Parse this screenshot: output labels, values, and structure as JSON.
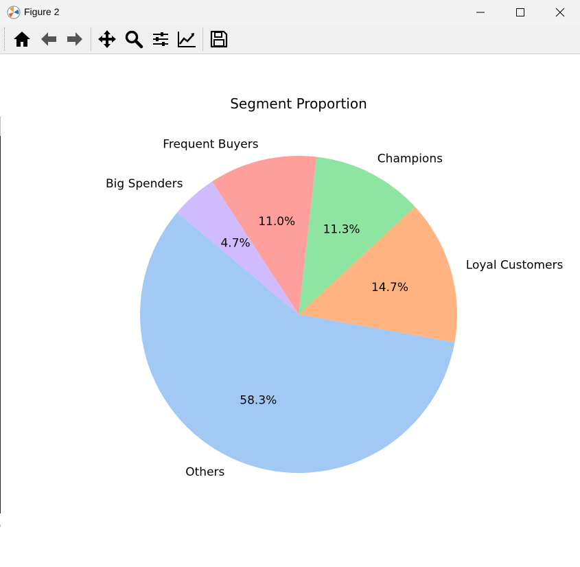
{
  "window": {
    "title": "Figure 2",
    "buttons": [
      "minimize",
      "maximize",
      "close"
    ]
  },
  "toolbar": {
    "tools": [
      {
        "name": "home-icon",
        "tooltip": "Home"
      },
      {
        "name": "back-arrow-icon",
        "tooltip": "Back"
      },
      {
        "name": "forward-arrow-icon",
        "tooltip": "Forward"
      },
      {
        "name": "pan-icon",
        "tooltip": "Pan"
      },
      {
        "name": "zoom-icon",
        "tooltip": "Zoom"
      },
      {
        "name": "subplots-config-icon",
        "tooltip": "Configure subplots"
      },
      {
        "name": "edit-axis-icon",
        "tooltip": "Edit axis"
      },
      {
        "name": "save-icon",
        "tooltip": "Save"
      }
    ]
  },
  "chart_data": {
    "type": "pie",
    "title": "Segment Proportion",
    "start_angle_deg": 140,
    "direction": "counterclockwise",
    "slices": [
      {
        "label": "Others",
        "value": 58.3,
        "pct_label": "58.3%",
        "color": "#a1c9f4"
      },
      {
        "label": "Loyal Customers",
        "value": 14.7,
        "pct_label": "14.7%",
        "color": "#ffb482"
      },
      {
        "label": "Champions",
        "value": 11.3,
        "pct_label": "11.3%",
        "color": "#8de5a1"
      },
      {
        "label": "Frequent Buyers",
        "value": 11.0,
        "pct_label": "11.0%",
        "color": "#ff9f9b"
      },
      {
        "label": "Big Spenders",
        "value": 4.7,
        "pct_label": "4.7%",
        "color": "#d0bbff"
      }
    ]
  }
}
